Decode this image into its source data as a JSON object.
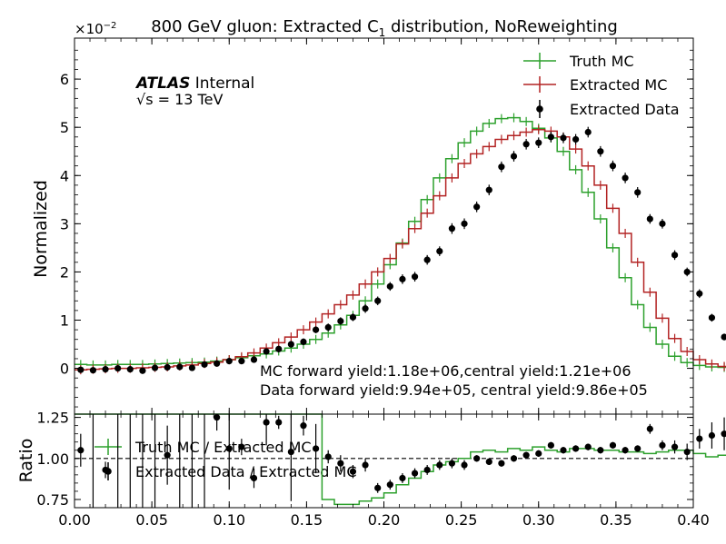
{
  "chart_data": [
    {
      "type": "line",
      "panel": "main",
      "title": "800 GeV gluon: Extracted C",
      "title_subscript": "1",
      "title_suffix": " distribution, NoReweighting",
      "ylabel": "Normalized",
      "y_multiplier": "×10",
      "y_multiplier_exp": "−2",
      "xlim": [
        0.0,
        0.4
      ],
      "ylim": [
        -0.0095,
        0.0685
      ],
      "yscale_exponent": -2,
      "y_ticks": [
        0,
        1,
        2,
        3,
        4,
        5,
        6
      ],
      "x_ticks": [
        "0.00",
        "0.05",
        "0.10",
        "0.15",
        "0.20",
        "0.25",
        "0.30",
        "0.35",
        "0.40"
      ],
      "bin_width": 0.008,
      "x_edges_start": 0.0,
      "grid": false,
      "legend_position": "top-right",
      "atlas_label": "ATLAS",
      "atlas_sub": "Internal",
      "energy_label": "√s =  13 TeV",
      "annotations": [
        "MC forward yield:1.18e+06,central yield:1.21e+06",
        "Data forward yield:9.94e+05, central yield:9.86e+05"
      ],
      "series": [
        {
          "name": "Truth MC",
          "style": "step",
          "color": "#2ca02c",
          "values": [
            0.0008,
            0.0007,
            0.0007,
            0.0008,
            0.0008,
            0.0008,
            0.0009,
            0.001,
            0.0011,
            0.0012,
            0.0013,
            0.0015,
            0.0018,
            0.0022,
            0.0026,
            0.003,
            0.0036,
            0.0042,
            0.005,
            0.006,
            0.0073,
            0.009,
            0.011,
            0.014,
            0.0175,
            0.0215,
            0.026,
            0.0305,
            0.035,
            0.0395,
            0.0435,
            0.0468,
            0.0492,
            0.0508,
            0.0518,
            0.052,
            0.0512,
            0.0498,
            0.0478,
            0.045,
            0.0412,
            0.0365,
            0.031,
            0.025,
            0.0188,
            0.0132,
            0.0085,
            0.005,
            0.0025,
            0.0012,
            0.0006,
            0.0003,
            0.0002,
            0.0001,
            0.0001,
            0.0001,
            0.0001,
            0.0001,
            0.0001,
            0.0001
          ]
        },
        {
          "name": "Extracted MC",
          "style": "step",
          "color": "#b22222",
          "values": [
            -0.0003,
            -0.0002,
            -0.0001,
            0.0,
            0.0,
            0.0001,
            0.0002,
            0.0003,
            0.0005,
            0.0007,
            0.001,
            0.0013,
            0.0018,
            0.0024,
            0.0032,
            0.0042,
            0.0053,
            0.0065,
            0.008,
            0.0096,
            0.0113,
            0.0132,
            0.0152,
            0.0175,
            0.02,
            0.0228,
            0.0258,
            0.029,
            0.0322,
            0.0358,
            0.0395,
            0.0425,
            0.0445,
            0.046,
            0.0475,
            0.0483,
            0.049,
            0.0495,
            0.0492,
            0.048,
            0.0455,
            0.042,
            0.038,
            0.0332,
            0.028,
            0.022,
            0.0158,
            0.0104,
            0.0062,
            0.0035,
            0.0018,
            0.0009,
            0.0004,
            0.0002,
            0.0001,
            0.0001,
            0.0,
            0.0,
            0.0,
            0.0
          ]
        },
        {
          "name": "Extracted Data",
          "style": "points",
          "color": "#000000",
          "values": [
            -0.0003,
            -0.0004,
            -0.0002,
            0.0,
            -0.0002,
            -0.0005,
            0.0001,
            0.0002,
            0.0003,
            0.0001,
            0.0008,
            0.001,
            0.0015,
            0.0015,
            0.0018,
            0.0035,
            0.004,
            0.005,
            0.0055,
            0.008,
            0.0085,
            0.0098,
            0.0106,
            0.0124,
            0.014,
            0.017,
            0.0185,
            0.019,
            0.0225,
            0.0243,
            0.029,
            0.03,
            0.0335,
            0.037,
            0.0418,
            0.044,
            0.0465,
            0.0468,
            0.048,
            0.0478,
            0.0475,
            0.049,
            0.045,
            0.042,
            0.0395,
            0.0365,
            0.031,
            0.03,
            0.0235,
            0.02,
            0.0155,
            0.0105,
            0.0065,
            0.0035,
            0.0019,
            0.0006,
            -0.0001,
            -0.0002,
            -0.0002,
            -0.0002
          ],
          "errors": [
            0.0006,
            0.0005,
            0.0005,
            0.0005,
            0.0005,
            0.0005,
            0.0005,
            0.0005,
            0.0005,
            0.0005,
            0.0006,
            0.0006,
            0.0006,
            0.0006,
            0.0006,
            0.0006,
            0.0007,
            0.0007,
            0.0007,
            0.0007,
            0.0008,
            0.0008,
            0.0008,
            0.0009,
            0.0009,
            0.0009,
            0.001,
            0.001,
            0.001,
            0.001,
            0.0011,
            0.0011,
            0.0011,
            0.0011,
            0.0011,
            0.0011,
            0.0011,
            0.0011,
            0.0011,
            0.0011,
            0.0011,
            0.0011,
            0.0011,
            0.0011,
            0.0011,
            0.0011,
            0.001,
            0.001,
            0.001,
            0.0009,
            0.0009,
            0.0008,
            0.0007,
            0.0006,
            0.0005,
            0.0005,
            0.0004,
            0.0004,
            0.0004,
            0.0004
          ]
        }
      ]
    },
    {
      "type": "line",
      "panel": "ratio",
      "ylabel": "Ratio",
      "xlim": [
        0.0,
        0.4
      ],
      "ylim": [
        0.7,
        1.27
      ],
      "y_ticks": [
        "0.75",
        "1.00",
        "1.25"
      ],
      "reference_line": 1.0,
      "legend_position": "top-left",
      "series": [
        {
          "name": "Truth MC / Extracted MC",
          "style": "step",
          "color": "#2ca02c",
          "values": [
            1.3,
            1.3,
            1.3,
            1.3,
            1.3,
            1.3,
            1.3,
            1.3,
            1.3,
            1.3,
            1.3,
            1.3,
            1.3,
            1.3,
            1.3,
            1.3,
            1.3,
            1.3,
            1.3,
            1.3,
            0.75,
            0.72,
            0.72,
            0.74,
            0.76,
            0.79,
            0.84,
            0.88,
            0.92,
            0.96,
            0.98,
            1.0,
            1.04,
            1.05,
            1.04,
            1.06,
            1.05,
            1.07,
            1.05,
            1.04,
            1.06,
            1.06,
            1.05,
            1.05,
            1.04,
            1.04,
            1.03,
            1.04,
            1.05,
            1.05,
            1.03,
            1.01,
            1.02,
            1.03,
            1.04,
            1.06,
            0.91,
            0.92,
            0.78,
            0.7
          ]
        },
        {
          "name": "Extracted Data / Extracted MC",
          "style": "points",
          "color": "#000000",
          "values": [
            1.05,
            null,
            0.93,
            null,
            null,
            null,
            null,
            1.02,
            null,
            null,
            null,
            1.25,
            1.06,
            1.07,
            0.88,
            1.22,
            1.22,
            1.04,
            1.2,
            1.06,
            1.01,
            0.97,
            0.92,
            0.96,
            0.82,
            0.84,
            0.88,
            0.91,
            0.93,
            0.96,
            0.97,
            0.96,
            1.0,
            0.98,
            0.97,
            1.0,
            1.02,
            1.03,
            1.08,
            1.05,
            1.06,
            1.07,
            1.05,
            1.08,
            1.05,
            1.06,
            1.18,
            1.08,
            1.07,
            1.04,
            1.12,
            1.14,
            1.15,
            1.07,
            1.06,
            1.02,
            1.1,
            0.98,
            0.93,
            0.72
          ],
          "errors": [
            0.1,
            0.3,
            0.05,
            0.3,
            0.3,
            0.3,
            0.3,
            0.18,
            0.3,
            0.3,
            0.3,
            0.08,
            0.25,
            0.05,
            0.06,
            0.14,
            0.04,
            0.3,
            0.06,
            0.15,
            0.04,
            0.05,
            0.04,
            0.04,
            0.03,
            0.03,
            0.03,
            0.03,
            0.03,
            0.03,
            0.03,
            0.03,
            0.02,
            0.02,
            0.02,
            0.02,
            0.02,
            0.02,
            0.02,
            0.02,
            0.02,
            0.02,
            0.02,
            0.02,
            0.02,
            0.02,
            0.03,
            0.03,
            0.04,
            0.05,
            0.06,
            0.08,
            0.1,
            0.12,
            0.12,
            0.14,
            0.2,
            0.25,
            0.3,
            0.3
          ]
        }
      ]
    }
  ]
}
